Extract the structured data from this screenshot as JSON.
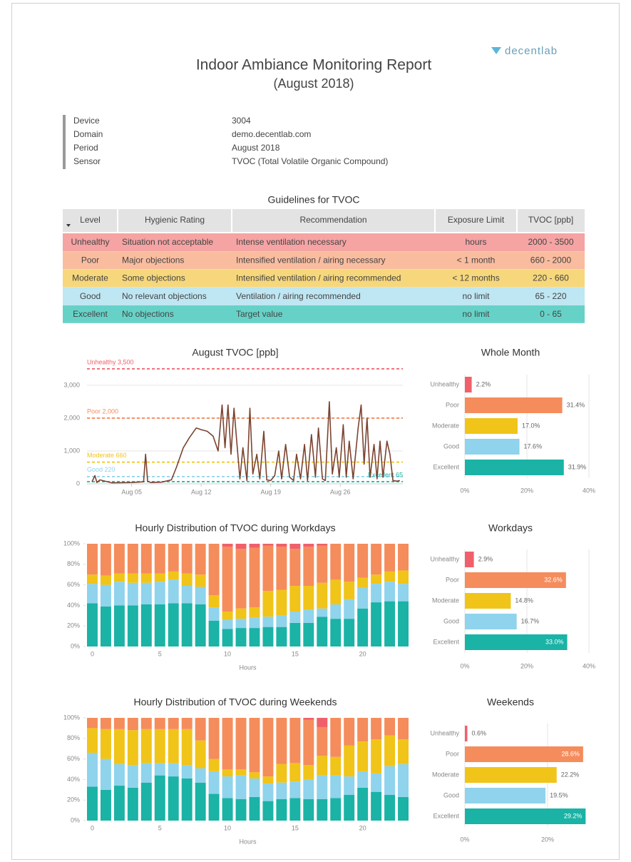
{
  "header": {
    "logo": "decentlab",
    "title": "Indoor Ambiance Monitoring Report",
    "subtitle": "(August 2018)"
  },
  "info": [
    [
      "Device",
      "3004"
    ],
    [
      "Domain",
      "demo.decentlab.com"
    ],
    [
      "Period",
      "August 2018"
    ],
    [
      "Sensor",
      "TVOC (Total Volatile Organic Compound)"
    ]
  ],
  "table": {
    "title": "Guidelines for TVOC",
    "columns": [
      "Level",
      "Hygienic Rating",
      "Recommendation",
      "Exposure Limit",
      "TVOC [ppb]"
    ],
    "rows": [
      [
        "Unhealthy",
        "Situation not acceptable",
        "Intense ventilation necessary",
        "hours",
        "2000 - 3500"
      ],
      [
        "Poor",
        "Major objections",
        "Intensified ventilation / airing necessary",
        "< 1 month",
        "660 - 2000"
      ],
      [
        "Moderate",
        "Some objections",
        "Intensified ventilation / airing recommended",
        "< 12 months",
        "220 - 660"
      ],
      [
        "Good",
        "No relevant objections",
        "Ventilation / airing recommended",
        "no limit",
        "65 - 220"
      ],
      [
        "Excellent",
        "No objections",
        "Target value",
        "no limit",
        "0 - 65"
      ]
    ],
    "row_colors": [
      "#f5a3a3",
      "#f9bc9f",
      "#f6d77c",
      "#bfe6f3",
      "#66d2c7"
    ]
  },
  "chart_data": [
    {
      "type": "line",
      "title": "August TVOC [ppb]",
      "color": "#7b4330",
      "x": [
        1.0,
        1.3,
        1.5,
        1.8,
        3.0,
        5.0,
        6.2,
        6.4,
        6.6,
        6.9,
        8.0,
        9.0,
        9.5,
        10.2,
        10.8,
        11.5,
        12.0,
        12.6,
        13.2,
        13.7,
        14.1,
        14.4,
        14.7,
        15.0,
        15.3,
        15.6,
        15.9,
        16.2,
        16.6,
        16.9,
        17.2,
        17.6,
        17.9,
        18.3,
        18.6,
        19.0,
        19.4,
        19.8,
        20.1,
        20.5,
        20.9,
        21.3,
        21.6,
        22.0,
        22.4,
        22.7,
        23.1,
        23.5,
        23.8,
        24.2,
        24.5,
        24.9,
        25.2,
        25.6,
        25.9,
        26.3,
        26.6,
        26.9,
        27.3,
        27.8,
        28.1,
        28.4,
        28.7,
        29.0,
        29.4,
        29.7,
        30.0,
        30.3,
        30.7,
        31.0,
        31.3,
        31.7,
        32.0
      ],
      "values": [
        60,
        250,
        40,
        120,
        30,
        40,
        60,
        900,
        80,
        40,
        50,
        120,
        500,
        1100,
        1400,
        1700,
        1650,
        1600,
        1450,
        1000,
        2400,
        1100,
        2400,
        900,
        2300,
        1200,
        150,
        1100,
        100,
        2300,
        300,
        900,
        150,
        1600,
        120,
        100,
        250,
        1000,
        150,
        1200,
        200,
        100,
        900,
        150,
        1200,
        100,
        1500,
        200,
        1700,
        150,
        100,
        2500,
        300,
        1100,
        200,
        1800,
        200,
        1300,
        150,
        1700,
        2400,
        600,
        2000,
        200,
        1200,
        150,
        1300,
        200,
        1300,
        900,
        100,
        80,
        100
      ],
      "xlim": [
        0.5,
        32.3
      ],
      "xticks": [
        {
          "value": 5,
          "label": "Aug 05"
        },
        {
          "value": 12,
          "label": "Aug 12"
        },
        {
          "value": 19,
          "label": "Aug 19"
        },
        {
          "value": 26,
          "label": "Aug 26"
        }
      ],
      "ylim": [
        0,
        3650
      ],
      "yticks": [
        0,
        {
          "value": 1000,
          "label": "1,000"
        },
        {
          "value": 2000,
          "label": "2,000"
        },
        {
          "value": 3000,
          "label": "3,000"
        }
      ],
      "grid": true,
      "thresholds": [
        {
          "label": "Unhealthy 3,500",
          "value": 3500,
          "color": "#f0606a"
        },
        {
          "label": "Poor 2,000",
          "value": 2000,
          "color": "#f58c5c"
        },
        {
          "label": "Moderate 660",
          "value": 660,
          "color": "#f0c419"
        },
        {
          "label": "Good 220",
          "value": 220,
          "color": "#8fd3ec"
        },
        {
          "label": "Excellent 65",
          "value": 65,
          "color": "#1ab3a6"
        }
      ]
    },
    {
      "type": "bar",
      "horizontal": true,
      "title": "Whole Month",
      "categories": [
        "Unhealthy",
        "Poor",
        "Moderate",
        "Good",
        "Excellent"
      ],
      "values": [
        2.2,
        31.4,
        17.0,
        17.6,
        31.9
      ],
      "value_labels": [
        "2.2%",
        "31.4%",
        "17.0%",
        "17.6%",
        "31.9%"
      ],
      "colors": [
        "#f0606a",
        "#f58c5c",
        "#f0c419",
        "#8fd3ec",
        "#1ab3a6"
      ],
      "xlim": [
        0,
        40
      ],
      "xticks": [
        {
          "value": 0,
          "label": "0%"
        },
        {
          "value": 20,
          "label": "20%"
        },
        {
          "value": 40,
          "label": "40%"
        }
      ],
      "grid": true
    },
    {
      "type": "bar",
      "stacked": true,
      "title": "Hourly Distribution of TVOC during Workdays",
      "x_label": "Hours",
      "categories": [
        0,
        null,
        null,
        null,
        null,
        5,
        null,
        null,
        null,
        null,
        10,
        null,
        null,
        null,
        null,
        15,
        null,
        null,
        null,
        null,
        20,
        null,
        null,
        null
      ],
      "series": [
        {
          "color": "#1ab3a6",
          "values": [
            42,
            39,
            40,
            40,
            41,
            41,
            42,
            42,
            41,
            25,
            17,
            18,
            18,
            19,
            19,
            23,
            23,
            29,
            27,
            27,
            37,
            43,
            44,
            44
          ]
        },
        {
          "color": "#8fd3ec",
          "values": [
            19,
            21,
            23,
            22,
            21,
            22,
            23,
            17,
            17,
            13,
            9,
            9,
            10,
            10,
            11,
            11,
            13,
            8,
            14,
            19,
            20,
            18,
            19,
            17
          ]
        },
        {
          "color": "#f0c419",
          "values": [
            9,
            9,
            8,
            9,
            9,
            8,
            8,
            12,
            12,
            12,
            8,
            10,
            10,
            25,
            25,
            25,
            23,
            25,
            24,
            17,
            10,
            9,
            10,
            13
          ]
        },
        {
          "color": "#f58c5c",
          "values": [
            30,
            31,
            29,
            29,
            29,
            29,
            27,
            29,
            30,
            50,
            63,
            58,
            58,
            44,
            42,
            36,
            38,
            36,
            35,
            37,
            33,
            30,
            27,
            26
          ]
        },
        {
          "color": "#f0606a",
          "values": [
            0,
            0,
            0,
            0,
            0,
            0,
            0,
            0,
            0,
            0,
            3,
            5,
            4,
            2,
            3,
            5,
            3,
            2,
            0,
            0,
            0,
            0,
            0,
            0
          ]
        }
      ],
      "ylim": [
        0,
        100
      ],
      "yticks": [
        {
          "value": 0,
          "label": "0%"
        },
        {
          "value": 20,
          "label": "20%"
        },
        {
          "value": 40,
          "label": "40%"
        },
        {
          "value": 60,
          "label": "60%"
        },
        {
          "value": 80,
          "label": "80%"
        },
        {
          "value": 100,
          "label": "100%"
        }
      ],
      "grid": false
    },
    {
      "type": "bar",
      "horizontal": true,
      "title": "Workdays",
      "categories": [
        "Unhealthy",
        "Poor",
        "Moderate",
        "Good",
        "Excellent"
      ],
      "values": [
        2.9,
        32.6,
        14.8,
        16.7,
        33.0
      ],
      "value_labels": [
        "2.9%",
        "32.6%",
        "14.8%",
        "16.7%",
        "33.0%"
      ],
      "colors": [
        "#f0606a",
        "#f58c5c",
        "#f0c419",
        "#8fd3ec",
        "#1ab3a6"
      ],
      "xlim": [
        0,
        40
      ],
      "xticks": [
        {
          "value": 0,
          "label": "0%"
        },
        {
          "value": 20,
          "label": "20%"
        },
        {
          "value": 40,
          "label": "40%"
        }
      ],
      "grid": true
    },
    {
      "type": "bar",
      "stacked": true,
      "title": "Hourly Distribution of TVOC during Weekends",
      "x_label": "Hours",
      "categories": [
        0,
        null,
        null,
        null,
        null,
        5,
        null,
        null,
        null,
        null,
        10,
        null,
        null,
        null,
        null,
        15,
        null,
        null,
        null,
        null,
        20,
        null,
        null,
        null
      ],
      "series": [
        {
          "color": "#1ab3a6",
          "values": [
            33,
            30,
            34,
            32,
            37,
            44,
            43,
            41,
            37,
            26,
            22,
            21,
            23,
            19,
            21,
            22,
            21,
            21,
            22,
            25,
            32,
            28,
            25,
            23
          ]
        },
        {
          "color": "#8fd3ec",
          "values": [
            33,
            30,
            21,
            22,
            19,
            12,
            13,
            13,
            14,
            22,
            21,
            23,
            18,
            17,
            16,
            16,
            19,
            23,
            22,
            18,
            16,
            18,
            28,
            32
          ]
        },
        {
          "color": "#f0c419",
          "values": [
            24,
            29,
            34,
            34,
            33,
            33,
            33,
            35,
            27,
            12,
            7,
            6,
            6,
            7,
            18,
            18,
            14,
            19,
            18,
            30,
            29,
            33,
            30,
            24
          ]
        },
        {
          "color": "#f58c5c",
          "values": [
            10,
            11,
            11,
            12,
            11,
            11,
            11,
            11,
            22,
            40,
            50,
            50,
            53,
            57,
            45,
            44,
            44,
            28,
            38,
            27,
            23,
            21,
            17,
            21
          ]
        },
        {
          "color": "#f0606a",
          "values": [
            0,
            0,
            0,
            0,
            0,
            0,
            0,
            0,
            0,
            0,
            0,
            0,
            0,
            0,
            0,
            0,
            2,
            9,
            0,
            0,
            0,
            0,
            0,
            0
          ]
        }
      ],
      "ylim": [
        0,
        100
      ],
      "yticks": [
        {
          "value": 0,
          "label": "0%"
        },
        {
          "value": 20,
          "label": "20%"
        },
        {
          "value": 40,
          "label": "40%"
        },
        {
          "value": 60,
          "label": "60%"
        },
        {
          "value": 80,
          "label": "80%"
        },
        {
          "value": 100,
          "label": "100%"
        }
      ],
      "grid": false
    },
    {
      "type": "bar",
      "horizontal": true,
      "title": "Weekends",
      "categories": [
        "Unhealthy",
        "Poor",
        "Moderate",
        "Good",
        "Excellent"
      ],
      "values": [
        0.6,
        28.6,
        22.2,
        19.5,
        29.2
      ],
      "value_labels": [
        "0.6%",
        "28.6%",
        "22.2%",
        "19.5%",
        "29.2%"
      ],
      "colors": [
        "#f0606a",
        "#f58c5c",
        "#f0c419",
        "#8fd3ec",
        "#1ab3a6"
      ],
      "xlim": [
        0,
        30
      ],
      "xticks": [
        {
          "value": 0,
          "label": "0%"
        },
        {
          "value": 20,
          "label": "20%"
        }
      ],
      "grid": true
    }
  ]
}
